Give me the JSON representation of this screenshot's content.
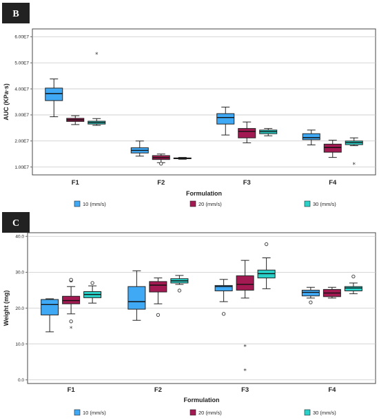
{
  "chart_data": [
    {
      "type": "box",
      "panel_label": "B",
      "xlabel": "Formulation",
      "ylabel": "AUC (KPa·s)",
      "ylim": [
        7000000.0,
        63000000.0
      ],
      "yticks": [
        10000000.0,
        20000000.0,
        30000000.0,
        40000000.0,
        50000000.0,
        60000000.0
      ],
      "ytick_labels": [
        "1.00E7",
        "2.00E7",
        "3.00E7",
        "4.00E7",
        "5.00E7",
        "6.00E7"
      ],
      "grid": "horizontal",
      "legend_position": "bottom",
      "categories": [
        "F1",
        "F2",
        "F3",
        "F4"
      ],
      "series": [
        {
          "name": "10 (mm/s)",
          "color": "#3fa9f5",
          "boxes": [
            {
              "whisker_low": 29300000.0,
              "q1": 35500000.0,
              "median": 38200000.0,
              "q3": 40300000.0,
              "whisker_high": 43800000.0,
              "outliers": []
            },
            {
              "whisker_low": 14200000.0,
              "q1": 15400000.0,
              "median": 16400000.0,
              "q3": 17400000.0,
              "whisker_high": 20000000.0,
              "outliers": []
            },
            {
              "whisker_low": 22300000.0,
              "q1": 26500000.0,
              "median": 29000000.0,
              "q3": 30500000.0,
              "whisker_high": 33000000.0,
              "outliers": []
            },
            {
              "whisker_low": 18500000.0,
              "q1": 20500000.0,
              "median": 21300000.0,
              "q3": 22800000.0,
              "whisker_high": 24200000.0,
              "outliers": []
            }
          ]
        },
        {
          "name": "20 (mm/s)",
          "color": "#a31a52",
          "boxes": [
            {
              "whisker_low": 26300000.0,
              "q1": 27500000.0,
              "median": 28100000.0,
              "q3": 28700000.0,
              "whisker_high": 29700000.0,
              "outliers": []
            },
            {
              "whisker_low": 11700000.0,
              "q1": 12900000.0,
              "median": 13600000.0,
              "q3": 14400000.0,
              "whisker_high": 15000000.0,
              "outliers": [
                {
                  "value": 11300000.0,
                  "kind": "circle"
                }
              ]
            },
            {
              "whisker_low": 19300000.0,
              "q1": 21200000.0,
              "median": 23700000.0,
              "q3": 24800000.0,
              "whisker_high": 27300000.0,
              "outliers": []
            },
            {
              "whisker_low": 13700000.0,
              "q1": 15700000.0,
              "median": 17500000.0,
              "q3": 18800000.0,
              "whisker_high": 20300000.0,
              "outliers": []
            }
          ]
        },
        {
          "name": "30 (mm/s)",
          "color": "#2ad1c9",
          "boxes": [
            {
              "whisker_low": 26000000.0,
              "q1": 26500000.0,
              "median": 27100000.0,
              "q3": 27600000.0,
              "whisker_high": 28600000.0,
              "outliers": [
                {
                  "value": 53300000.0,
                  "kind": "star"
                }
              ]
            },
            {
              "whisker_low": 13000000.0,
              "q1": 13200000.0,
              "median": 13400000.0,
              "q3": 13500000.0,
              "whisker_high": 13700000.0,
              "outliers": []
            },
            {
              "whisker_low": 22000000.0,
              "q1": 22800000.0,
              "median": 23600000.0,
              "q3": 24200000.0,
              "whisker_high": 24800000.0,
              "outliers": []
            },
            {
              "whisker_low": 18200000.0,
              "q1": 18600000.0,
              "median": 19400000.0,
              "q3": 20000000.0,
              "whisker_high": 21200000.0,
              "outliers": [
                {
                  "value": 11000000.0,
                  "kind": "star"
                }
              ]
            }
          ]
        }
      ]
    },
    {
      "type": "box",
      "panel_label": "C",
      "xlabel": "Formulation",
      "ylabel": "Weight (mg)",
      "ylim": [
        -1,
        41
      ],
      "yticks": [
        0,
        10,
        20,
        30,
        40
      ],
      "ytick_labels": [
        "0.0",
        "10.0",
        "20.0",
        "30.0",
        "40.0"
      ],
      "grid": "horizontal",
      "legend_position": "bottom",
      "categories": [
        "F1",
        "F2",
        "F3",
        "F4"
      ],
      "series": [
        {
          "name": "10 (mm/s)",
          "color": "#3fa9f5",
          "boxes": [
            {
              "whisker_low": 13.4,
              "q1": 18.1,
              "median": 21.0,
              "q3": 22.4,
              "whisker_high": 22.6,
              "outliers": []
            },
            {
              "whisker_low": 16.6,
              "q1": 19.7,
              "median": 21.8,
              "q3": 26.0,
              "whisker_high": 30.4,
              "outliers": []
            },
            {
              "whisker_low": 21.8,
              "q1": 24.8,
              "median": 26.0,
              "q3": 26.3,
              "whisker_high": 28.0,
              "outliers": [
                {
                  "value": 18.4,
                  "kind": "circle"
                }
              ]
            },
            {
              "whisker_low": 22.8,
              "q1": 23.4,
              "median": 24.4,
              "q3": 25.0,
              "whisker_high": 25.8,
              "outliers": [
                {
                  "value": 21.6,
                  "kind": "circle"
                }
              ]
            }
          ]
        },
        {
          "name": "20 (mm/s)",
          "color": "#a31a52",
          "boxes": [
            {
              "whisker_low": 18.4,
              "q1": 21.2,
              "median": 22.1,
              "q3": 23.3,
              "whisker_high": 26.0,
              "outliers": [
                {
                  "value": 27.7,
                  "kind": "circle"
                },
                {
                  "value": 27.9,
                  "kind": "circle"
                },
                {
                  "value": 16.3,
                  "kind": "circle"
                },
                {
                  "value": 14.4,
                  "kind": "star"
                }
              ]
            },
            {
              "whisker_low": 21.2,
              "q1": 24.5,
              "median": 26.4,
              "q3": 27.4,
              "whisker_high": 28.4,
              "outliers": [
                {
                  "value": 18.1,
                  "kind": "circle"
                }
              ]
            },
            {
              "whisker_low": 22.8,
              "q1": 25.0,
              "median": 26.6,
              "q3": 29.0,
              "whisker_high": 33.3,
              "outliers": [
                {
                  "value": 9.3,
                  "kind": "star"
                },
                {
                  "value": 2.6,
                  "kind": "star"
                }
              ]
            },
            {
              "whisker_low": 22.8,
              "q1": 23.2,
              "median": 24.2,
              "q3": 25.2,
              "whisker_high": 25.8,
              "outliers": []
            }
          ]
        },
        {
          "name": "30 (mm/s)",
          "color": "#2ad1c9",
          "boxes": [
            {
              "whisker_low": 21.4,
              "q1": 22.9,
              "median": 23.8,
              "q3": 24.6,
              "whisker_high": 26.2,
              "outliers": [
                {
                  "value": 27.0,
                  "kind": "circle"
                }
              ]
            },
            {
              "whisker_low": 26.6,
              "q1": 27.0,
              "median": 27.6,
              "q3": 28.2,
              "whisker_high": 29.1,
              "outliers": [
                {
                  "value": 24.9,
                  "kind": "circle"
                }
              ]
            },
            {
              "whisker_low": 25.4,
              "q1": 28.4,
              "median": 29.6,
              "q3": 30.6,
              "whisker_high": 34.0,
              "outliers": [
                {
                  "value": 37.8,
                  "kind": "circle"
                }
              ]
            },
            {
              "whisker_low": 24.0,
              "q1": 24.8,
              "median": 25.6,
              "q3": 26.0,
              "whisker_high": 27.0,
              "outliers": [
                {
                  "value": 28.8,
                  "kind": "circle"
                }
              ]
            }
          ]
        }
      ]
    }
  ]
}
